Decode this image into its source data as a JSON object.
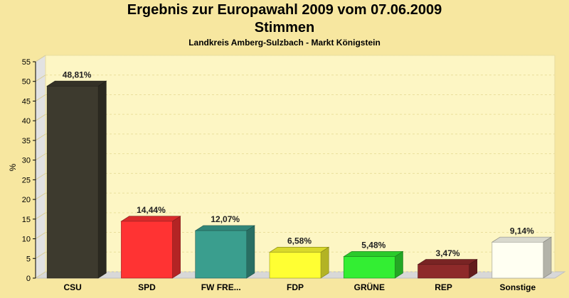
{
  "chart_data": {
    "type": "bar",
    "title": "Ergebnis zur Europawahl 2009 vom 07.06.2009",
    "subtitle": "Stimmen",
    "caption": "Landkreis Amberg-Sulzbach - Markt Königstein",
    "ylabel": "%",
    "ylim": [
      0,
      55
    ],
    "yticks": [
      0,
      5,
      10,
      15,
      20,
      25,
      30,
      35,
      40,
      45,
      50,
      55
    ],
    "grid": true,
    "categories": [
      "CSU",
      "SPD",
      "FW FRE...",
      "FDP",
      "GRÜNE",
      "REP",
      "Sonstige"
    ],
    "values": [
      48.81,
      14.44,
      12.07,
      6.58,
      5.48,
      3.47,
      9.14
    ],
    "value_labels": [
      "48,81%",
      "14,44%",
      "12,07%",
      "6,58%",
      "5,48%",
      "3,47%",
      "9,14%"
    ],
    "colors": [
      "#3d3a2e",
      "#ff3333",
      "#3a9e8e",
      "#ffff33",
      "#33ee33",
      "#8e2a2a",
      "#fffff2"
    ]
  }
}
